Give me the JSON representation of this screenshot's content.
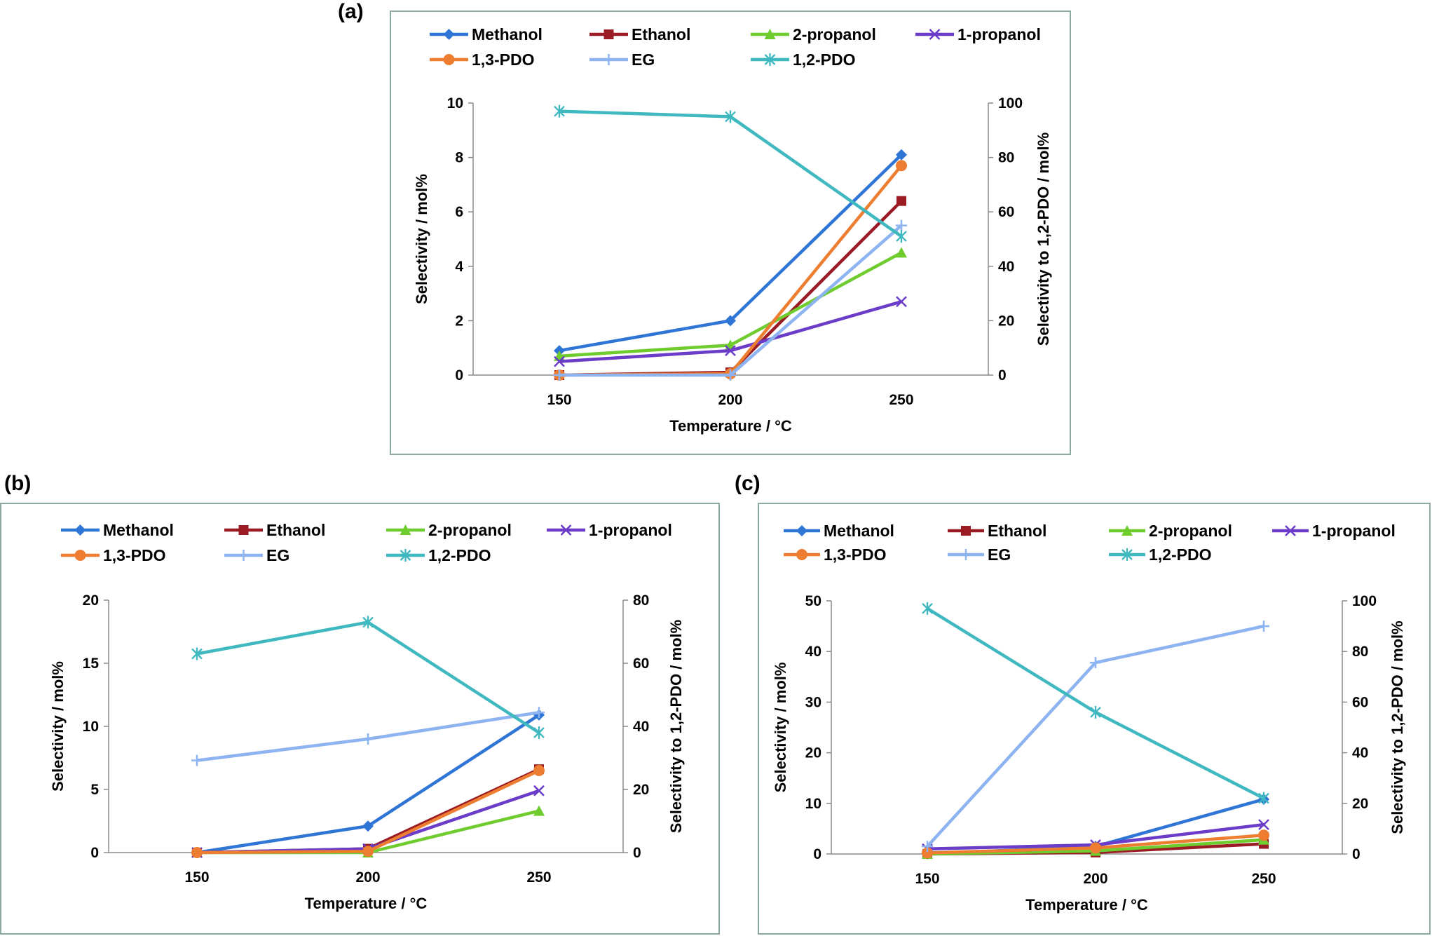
{
  "chart_data": [
    {
      "panel": "(a)",
      "type": "line",
      "xlabel": "Temperature / °C",
      "ylabel": "Selectivity / mol%",
      "y2label": "Selectivity to 1,2-PDO / mol%",
      "categories": [
        "150",
        "200",
        "250"
      ],
      "ylim": [
        0,
        10
      ],
      "yticks": [
        0,
        2,
        4,
        6,
        8,
        10
      ],
      "y2lim": [
        0,
        100
      ],
      "y2ticks": [
        0,
        20,
        40,
        60,
        80,
        100
      ],
      "legend_position": "top",
      "grid": false,
      "series": [
        {
          "name": "Methanol",
          "values": [
            0.9,
            2.0,
            8.1
          ],
          "color": "#2e75d6",
          "marker": "diamond",
          "axis": "left"
        },
        {
          "name": "Ethanol",
          "values": [
            0.0,
            0.1,
            6.4
          ],
          "color": "#9b1b24",
          "marker": "square",
          "axis": "left"
        },
        {
          "name": "2-propanol",
          "values": [
            0.7,
            1.1,
            4.5
          ],
          "color": "#6fcc2f",
          "marker": "triangle",
          "axis": "left"
        },
        {
          "name": "1-propanol",
          "values": [
            0.5,
            0.9,
            2.7
          ],
          "color": "#6a3cc8",
          "marker": "x",
          "axis": "left"
        },
        {
          "name": "1,3-PDO",
          "values": [
            0.0,
            0.05,
            7.7
          ],
          "color": "#ed7d31",
          "marker": "circle",
          "axis": "left"
        },
        {
          "name": "EG",
          "values": [
            0.0,
            0.0,
            5.5
          ],
          "color": "#8db4f0",
          "marker": "plus",
          "axis": "left"
        },
        {
          "name": "1,2-PDO",
          "values": [
            97,
            95,
            51
          ],
          "color": "#3fb8c0",
          "marker": "star",
          "axis": "right"
        }
      ]
    },
    {
      "panel": "(b)",
      "type": "line",
      "xlabel": "Temperature / °C",
      "ylabel": "Selectivity / mol%",
      "y2label": "Selectivity to 1,2-PDO / mol%",
      "categories": [
        "150",
        "200",
        "250"
      ],
      "ylim": [
        0,
        20
      ],
      "yticks": [
        0,
        5,
        10,
        15,
        20
      ],
      "y2lim": [
        0,
        80
      ],
      "y2ticks": [
        0,
        20,
        40,
        60,
        80
      ],
      "legend_position": "top",
      "grid": false,
      "series": [
        {
          "name": "Methanol",
          "values": [
            0.0,
            2.1,
            10.9
          ],
          "color": "#2e75d6",
          "marker": "diamond",
          "axis": "left"
        },
        {
          "name": "Ethanol",
          "values": [
            0.0,
            0.3,
            6.6
          ],
          "color": "#9b1b24",
          "marker": "square",
          "axis": "left"
        },
        {
          "name": "2-propanol",
          "values": [
            0.0,
            0.0,
            3.3
          ],
          "color": "#6fcc2f",
          "marker": "triangle",
          "axis": "left"
        },
        {
          "name": "1-propanol",
          "values": [
            0.0,
            0.3,
            4.9
          ],
          "color": "#6a3cc8",
          "marker": "x",
          "axis": "left"
        },
        {
          "name": "1,3-PDO",
          "values": [
            0.0,
            0.1,
            6.5
          ],
          "color": "#ed7d31",
          "marker": "circle",
          "axis": "left"
        },
        {
          "name": "EG",
          "values": [
            7.3,
            9.0,
            11.1
          ],
          "color": "#8db4f0",
          "marker": "plus",
          "axis": "left"
        },
        {
          "name": "1,2-PDO",
          "values": [
            63,
            73,
            38
          ],
          "color": "#3fb8c0",
          "marker": "star",
          "axis": "right"
        }
      ]
    },
    {
      "panel": "(c)",
      "type": "line",
      "xlabel": "Temperature / °C",
      "ylabel": "Selectivity / mol%",
      "y2label": "Selectivity to 1,2-PDO / mol%",
      "categories": [
        "150",
        "200",
        "250"
      ],
      "ylim": [
        0,
        50
      ],
      "yticks": [
        0,
        10,
        20,
        30,
        40,
        50
      ],
      "y2lim": [
        0,
        100
      ],
      "y2ticks": [
        0,
        20,
        40,
        60,
        80,
        100
      ],
      "legend_position": "top",
      "grid": false,
      "series": [
        {
          "name": "Methanol",
          "values": [
            0.0,
            1.5,
            10.8
          ],
          "color": "#2e75d6",
          "marker": "diamond",
          "axis": "left"
        },
        {
          "name": "Ethanol",
          "values": [
            0.0,
            0.3,
            2.0
          ],
          "color": "#9b1b24",
          "marker": "square",
          "axis": "left"
        },
        {
          "name": "2-propanol",
          "values": [
            0.0,
            0.6,
            2.8
          ],
          "color": "#6fcc2f",
          "marker": "triangle",
          "axis": "left"
        },
        {
          "name": "1-propanol",
          "values": [
            1.0,
            1.8,
            5.8
          ],
          "color": "#6a3cc8",
          "marker": "x",
          "axis": "left"
        },
        {
          "name": "1,3-PDO",
          "values": [
            0.2,
            1.2,
            3.7
          ],
          "color": "#ed7d31",
          "marker": "circle",
          "axis": "left"
        },
        {
          "name": "EG",
          "values": [
            1.5,
            37.8,
            45.0
          ],
          "color": "#8db4f0",
          "marker": "plus",
          "axis": "left"
        },
        {
          "name": "1,2-PDO",
          "values": [
            97,
            56,
            22
          ],
          "color": "#3fb8c0",
          "marker": "star",
          "axis": "right"
        }
      ]
    }
  ]
}
